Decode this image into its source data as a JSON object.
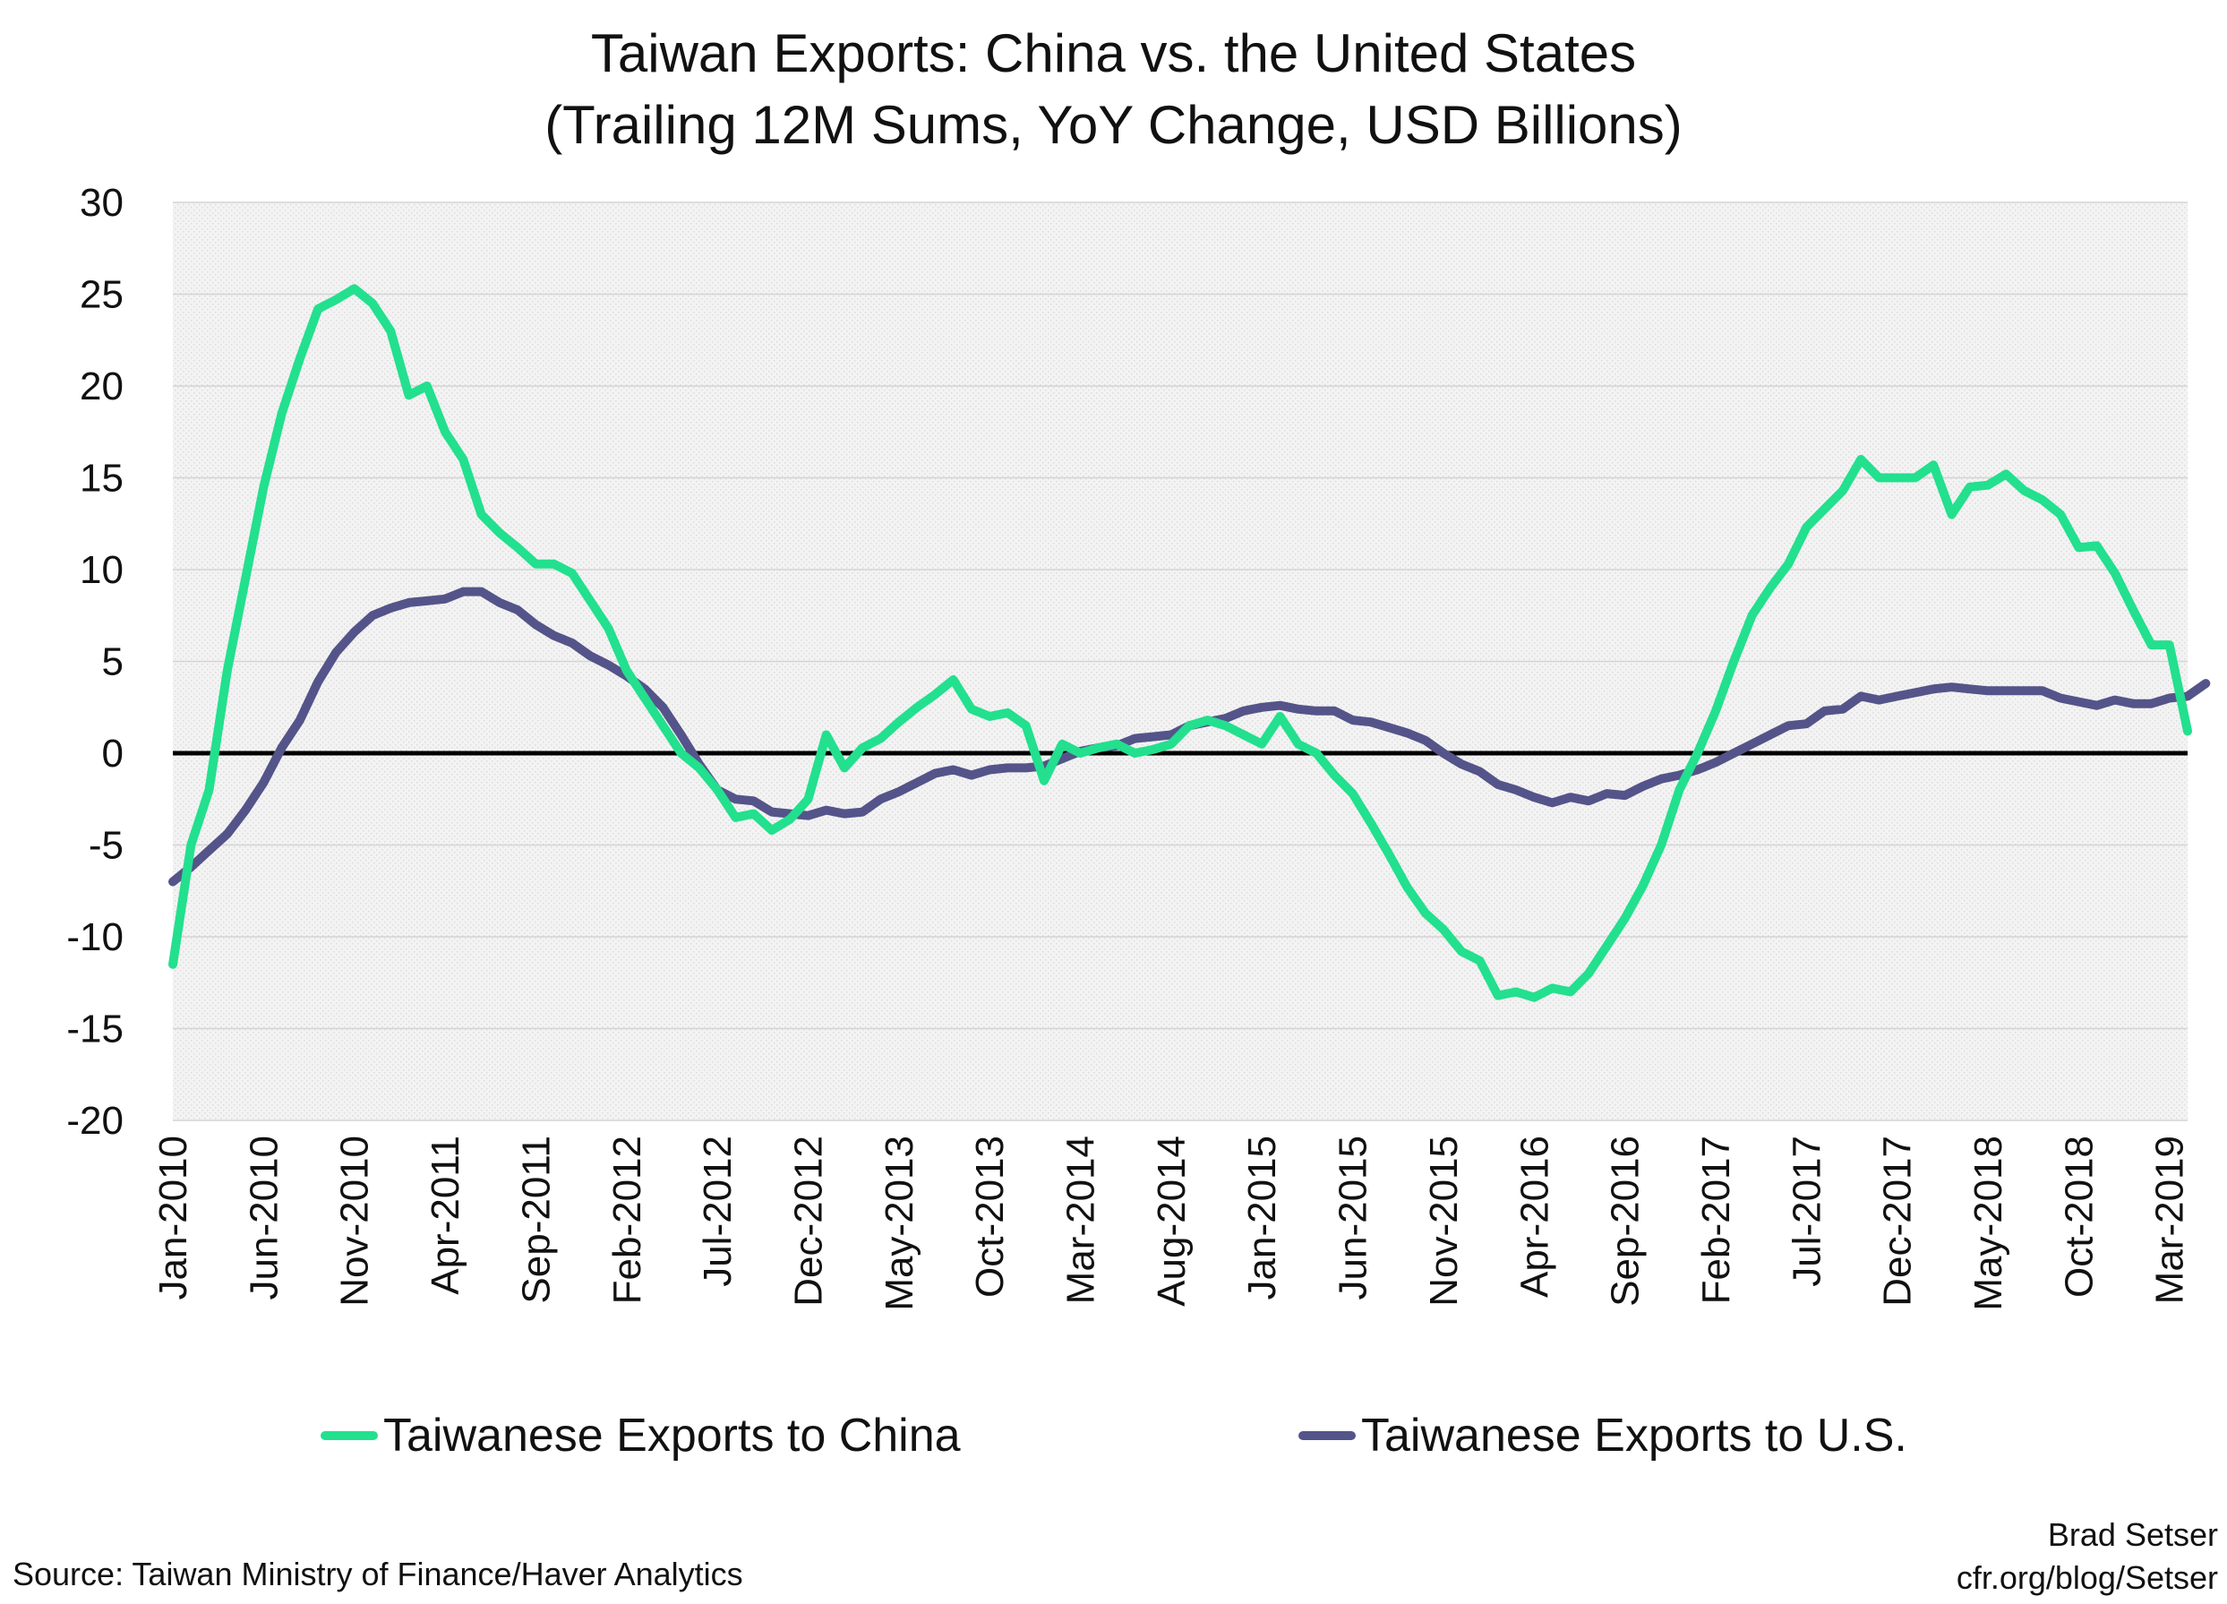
{
  "chart_data": {
    "type": "line",
    "title": "Taiwan Exports: China vs. the United States",
    "subtitle": "(Trailing 12M Sums, YoY Change, USD Billions)",
    "ylim": [
      -20,
      30
    ],
    "yticks": [
      30,
      25,
      20,
      15,
      10,
      5,
      0,
      -5,
      -10,
      -15,
      -20
    ],
    "grid": true,
    "zero_line": true,
    "legend_position": "bottom",
    "x_start": "Jan-2010",
    "x_end": "Mar-2019",
    "x_ticks": [
      "Jan-2010",
      "Jun-2010",
      "Nov-2010",
      "Apr-2011",
      "Sep-2011",
      "Feb-2012",
      "Jul-2012",
      "Dec-2012",
      "May-2013",
      "Oct-2013",
      "Mar-2014",
      "Aug-2014",
      "Jan-2015",
      "Jun-2015",
      "Nov-2015",
      "Apr-2016",
      "Sep-2016",
      "Feb-2017",
      "Jul-2017",
      "Dec-2017",
      "May-2018",
      "Oct-2018",
      "Mar-2019"
    ],
    "series": [
      {
        "name": "Taiwanese Exports to China",
        "color": "#22e08e",
        "values": [
          -11.5,
          -5,
          -2,
          4.5,
          9.5,
          14.5,
          18.5,
          21.5,
          24.2,
          24.7,
          25.3,
          24.5,
          23,
          19.5,
          20,
          17.5,
          16,
          13,
          12,
          11.2,
          10.3,
          10.3,
          9.8,
          8.3,
          6.8,
          4.5,
          3,
          1.5,
          0,
          -0.8,
          -2,
          -3.5,
          -3.3,
          -4.2,
          -3.6,
          -2.5,
          1,
          -0.8,
          0.3,
          0.8,
          1.7,
          2.5,
          3.2,
          4,
          2.4,
          2,
          2.2,
          1.5,
          -1.5,
          0.5,
          0,
          0.3,
          0.5,
          0,
          0.2,
          0.5,
          1.5,
          1.8,
          1.5,
          1,
          0.5,
          2,
          0.5,
          0,
          -1.2,
          -2.2,
          -3.8,
          -5.5,
          -7.3,
          -8.7,
          -9.6,
          -10.8,
          -11.3,
          -13.2,
          -13,
          -13.3,
          -12.8,
          -13,
          -12,
          -10.5,
          -9,
          -7.2,
          -5,
          -2,
          0,
          2.3,
          5,
          7.5,
          9,
          10.3,
          12.3,
          13.3,
          14.3,
          16,
          15,
          15,
          15,
          15.7,
          13,
          14.5,
          14.6,
          15.2,
          14.3,
          13.8,
          13,
          11.2,
          11.3,
          9.8,
          7.8,
          5.9,
          5.9,
          1.2
        ]
      },
      {
        "name": "Taiwanese Exports to U.S.",
        "color": "#54548a",
        "values": [
          -7,
          -6.2,
          -5.3,
          -4.4,
          -3.1,
          -1.6,
          0.3,
          1.8,
          3.9,
          5.5,
          6.6,
          7.5,
          7.9,
          8.2,
          8.3,
          8.4,
          8.8,
          8.8,
          8.2,
          7.8,
          7,
          6.4,
          6,
          5.3,
          4.8,
          4.2,
          3.5,
          2.5,
          1,
          -0.6,
          -2,
          -2.5,
          -2.6,
          -3.2,
          -3.3,
          -3.4,
          -3.1,
          -3.3,
          -3.2,
          -2.5,
          -2.1,
          -1.6,
          -1.1,
          -0.9,
          -1.2,
          -0.9,
          -0.8,
          -0.8,
          -0.7,
          -0.3,
          0.1,
          0.3,
          0.4,
          0.8,
          0.9,
          1,
          1.5,
          1.7,
          1.9,
          2.3,
          2.5,
          2.6,
          2.4,
          2.3,
          2.3,
          1.8,
          1.7,
          1.4,
          1.1,
          0.7,
          0,
          -0.6,
          -1,
          -1.7,
          -2,
          -2.4,
          -2.7,
          -2.4,
          -2.6,
          -2.2,
          -2.3,
          -1.8,
          -1.4,
          -1.2,
          -0.9,
          -0.5,
          0,
          0.5,
          1,
          1.5,
          1.6,
          2.3,
          2.4,
          3.1,
          2.9,
          3.1,
          3.3,
          3.5,
          3.6,
          3.5,
          3.4,
          3.4,
          3.4,
          3.4,
          3,
          2.8,
          2.6,
          2.9,
          2.7,
          2.7,
          3,
          3.1,
          3.8
        ]
      }
    ]
  },
  "source": "Source: Taiwan Ministry of Finance/Haver Analytics",
  "credit_name": "Brad Setser",
  "credit_url": "cfr.org/blog/Setser"
}
